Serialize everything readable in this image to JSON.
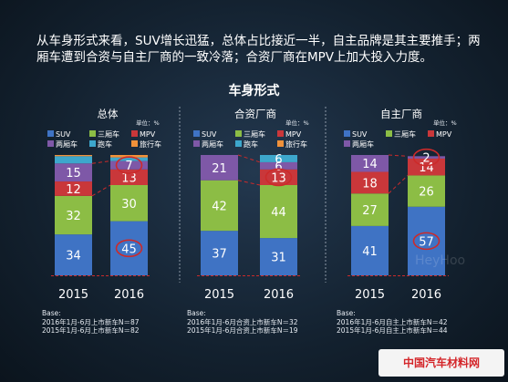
{
  "intro_text": "从车身形式来看，SUV增长迅猛，总体占比接近一半，自主品牌是其主要推手；两厢车遭到合资与自主厂商的一致冷落；合资厂商在MPV上加大投入力度。",
  "watermark": "HeyHoo",
  "footer_logo": "中国汽车材料网",
  "colors": {
    "SUV": "#3f73c4",
    "三厢车": "#8cbd45",
    "MPV": "#c9373a",
    "两厢车": "#7e58a7",
    "跑车": "#3da7cc",
    "旅行车": "#f0913a",
    "circle": "#cc2a2a"
  },
  "chart_data": {
    "type": "bar",
    "stacked": true,
    "title": "车身形式",
    "unit_label": "单位：%",
    "ylim": [
      0,
      100
    ],
    "categories": [
      "2015",
      "2016"
    ],
    "panels": [
      {
        "name": "总体",
        "legend": [
          "SUV",
          "三厢车",
          "MPV",
          "两厢车",
          "跑车",
          "旅行车"
        ],
        "series": [
          {
            "name": "SUV",
            "values": [
              34,
              45
            ]
          },
          {
            "name": "三厢车",
            "values": [
              32,
              30
            ]
          },
          {
            "name": "MPV",
            "values": [
              12,
              13
            ]
          },
          {
            "name": "两厢车",
            "values": [
              15,
              7
            ]
          },
          {
            "name": "跑车",
            "values": [
              6,
              3
            ]
          },
          {
            "name": "旅行车",
            "values": [
              1,
              2
            ]
          }
        ],
        "base": [
          "Base:",
          "2016年1月-6月上市新车N＝87",
          "2015年1月-6月上市新车N＝82"
        ]
      },
      {
        "name": "合资厂商",
        "legend": [
          "SUV",
          "三厢车",
          "MPV",
          "两厢车",
          "跑车",
          "旅行车"
        ],
        "series": [
          {
            "name": "SUV",
            "values": [
              37,
              31
            ]
          },
          {
            "name": "三厢车",
            "values": [
              42,
              44
            ]
          },
          {
            "name": "MPV",
            "values": [
              0,
              13
            ]
          },
          {
            "name": "两厢车",
            "values": [
              21,
              6
            ]
          },
          {
            "name": "跑车",
            "values": [
              0,
              6
            ]
          },
          {
            "name": "旅行车",
            "values": [
              0,
              0
            ]
          }
        ],
        "base": [
          "Base:",
          "2016年1月-6月合资上市新车N＝32",
          "2015年1月-6月合资上市新车N＝19"
        ]
      },
      {
        "name": "自主厂商",
        "legend": [
          "SUV",
          "三厢车",
          "MPV",
          "两厢车"
        ],
        "series": [
          {
            "name": "SUV",
            "values": [
              41,
              57
            ]
          },
          {
            "name": "三厢车",
            "values": [
              27,
              26
            ]
          },
          {
            "name": "MPV",
            "values": [
              18,
              14
            ]
          },
          {
            "name": "两厢车",
            "values": [
              14,
              2
            ]
          },
          {
            "name": "跑车",
            "values": [
              0,
              0
            ]
          },
          {
            "name": "旅行车",
            "values": [
              0,
              0
            ]
          }
        ],
        "base": [
          "Base:",
          "2016年1月-6月自主上市新车N＝42",
          "2015年1月-6月自主上市新车N＝44"
        ]
      }
    ],
    "printed_labels": [
      [
        [
          34,
          32,
          12,
          15,
          null,
          null
        ],
        [
          45,
          30,
          13,
          7,
          null,
          null
        ]
      ],
      [
        [
          37,
          42,
          null,
          21,
          null,
          null
        ],
        [
          31,
          44,
          13,
          6,
          6,
          null
        ]
      ],
      [
        [
          41,
          27,
          18,
          14,
          null,
          null
        ],
        [
          57,
          26,
          14,
          2,
          null,
          null
        ]
      ]
    ],
    "circled": [
      [
        [
          1,
          0
        ],
        [
          1,
          3
        ]
      ],
      [
        [
          1,
          2
        ]
      ],
      [
        [
          1,
          0
        ],
        [
          1,
          3
        ]
      ]
    ]
  }
}
